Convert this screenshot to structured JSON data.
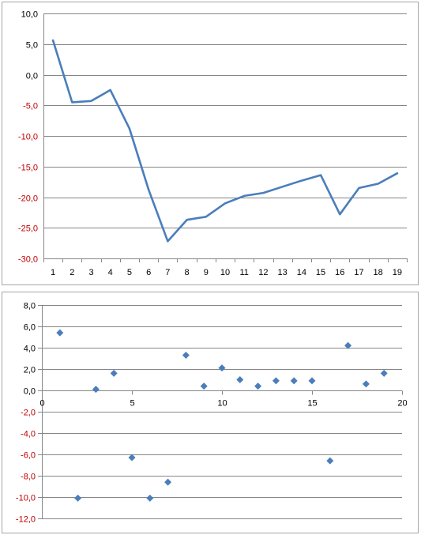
{
  "chart_data": [
    {
      "type": "line",
      "title": "",
      "xlabel": "",
      "ylabel": "",
      "x": [
        1,
        2,
        3,
        4,
        5,
        6,
        7,
        8,
        9,
        10,
        11,
        12,
        13,
        14,
        15,
        16,
        17,
        18,
        19
      ],
      "series": [
        {
          "values": [
            5.6,
            -4.5,
            -4.3,
            -2.5,
            -8.8,
            -18.8,
            -27.2,
            -23.7,
            -23.2,
            -21.0,
            -19.8,
            -19.3,
            -18.3,
            -17.3,
            -16.4,
            -22.8,
            -18.5,
            -17.8,
            -16.1
          ],
          "color": "#4a7ebb"
        }
      ],
      "ylim": [
        -30,
        10
      ],
      "yticks": [
        {
          "value": 10,
          "label": "10,0"
        },
        {
          "value": 5,
          "label": "5,0"
        },
        {
          "value": 0,
          "label": "0,0"
        },
        {
          "value": -5,
          "label": "-5,0"
        },
        {
          "value": -10,
          "label": "-10,0"
        },
        {
          "value": -15,
          "label": "-15,0"
        },
        {
          "value": -20,
          "label": "-20,0"
        },
        {
          "value": -25,
          "label": "-25,0"
        },
        {
          "value": -30,
          "label": "-30,0"
        }
      ],
      "xticks": [
        "1",
        "2",
        "3",
        "4",
        "5",
        "6",
        "7",
        "8",
        "9",
        "10",
        "11",
        "12",
        "13",
        "14",
        "15",
        "16",
        "17",
        "18",
        "19"
      ],
      "grid": true,
      "negative_label_color": "#c00000",
      "positive_label_color": "#000000"
    },
    {
      "type": "scatter",
      "title": "",
      "xlabel": "",
      "ylabel": "",
      "series": [
        {
          "x": [
            1,
            2,
            3,
            4,
            5,
            6,
            7,
            8,
            9,
            10,
            11,
            12,
            13,
            14,
            15,
            16,
            17,
            18,
            19
          ],
          "y": [
            5.4,
            -10.1,
            0.1,
            1.6,
            -6.3,
            -10.1,
            -8.6,
            3.3,
            0.4,
            2.1,
            1.0,
            0.4,
            0.9,
            0.9,
            0.9,
            -6.6,
            4.2,
            0.6,
            1.6
          ],
          "color": "#4a7ebb",
          "marker": "diamond"
        }
      ],
      "xlim": [
        0,
        20
      ],
      "ylim": [
        -12,
        8
      ],
      "yticks": [
        {
          "value": 8,
          "label": "8,0"
        },
        {
          "value": 6,
          "label": "6,0"
        },
        {
          "value": 4,
          "label": "4,0"
        },
        {
          "value": 2,
          "label": "2,0"
        },
        {
          "value": 0,
          "label": "0,0"
        },
        {
          "value": -2,
          "label": "-2,0"
        },
        {
          "value": -4,
          "label": "-4,0"
        },
        {
          "value": -6,
          "label": "-6,0"
        },
        {
          "value": -8,
          "label": "-8,0"
        },
        {
          "value": -10,
          "label": "-10,0"
        },
        {
          "value": -12,
          "label": "-12,0"
        }
      ],
      "xticks": [
        {
          "value": 0,
          "label": "0"
        },
        {
          "value": 5,
          "label": "5"
        },
        {
          "value": 10,
          "label": "10"
        },
        {
          "value": 15,
          "label": "15"
        },
        {
          "value": 20,
          "label": "20"
        }
      ],
      "grid": true,
      "negative_label_color": "#c00000",
      "positive_label_color": "#000000"
    }
  ]
}
